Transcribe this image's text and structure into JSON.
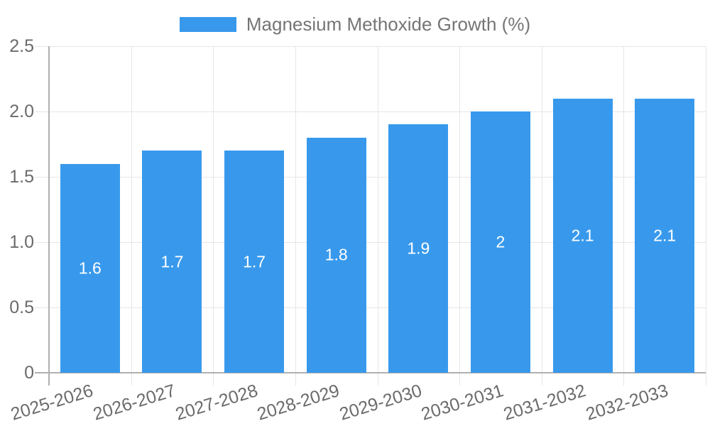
{
  "legend": {
    "label": "Magnesium Methoxide Growth (%)"
  },
  "colors": {
    "bar": "#3899EC",
    "gridline": "#e6e6e6",
    "axis": "#b0b0b0",
    "tick_text": "#6b6b6b",
    "legend_text": "#757575",
    "bar_label_text": "#ffffff",
    "background": "#ffffff"
  },
  "chart_data": {
    "type": "bar",
    "title": "Magnesium Methoxide Growth (%)",
    "xlabel": "",
    "ylabel": "",
    "categories": [
      "2025-2026",
      "2026-2027",
      "2027-2028",
      "2028-2029",
      "2029-2030",
      "2030-2031",
      "2031-2032",
      "2032-2033"
    ],
    "series": [
      {
        "name": "Magnesium Methoxide Growth (%)",
        "values": [
          1.6,
          1.7,
          1.7,
          1.8,
          1.9,
          2.0,
          2.1,
          2.1
        ],
        "value_labels": [
          "1.6",
          "1.7",
          "1.7",
          "1.8",
          "1.9",
          "2",
          "2.1",
          "2.1"
        ]
      }
    ],
    "yticks": [
      "0",
      "0.5",
      "1.0",
      "1.5",
      "2.0",
      "2.5"
    ],
    "ytick_values": [
      0,
      0.5,
      1.0,
      1.5,
      2.0,
      2.5
    ],
    "ylim": [
      0,
      2.5
    ],
    "grid": "horizontal and vertical, light gray",
    "legend_position": "top-center",
    "x_label_rotation_deg": -17
  }
}
